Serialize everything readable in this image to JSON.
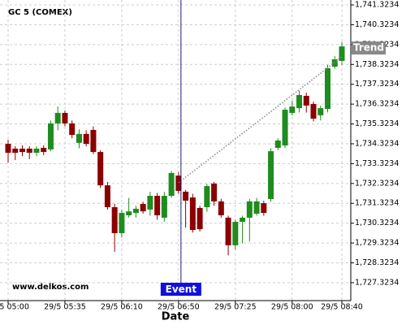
{
  "chart_data": {
    "type": "candlestick",
    "title": "GC 5 (COMEX)",
    "watermark": "www.delkos.com",
    "x_label": "Date",
    "categories": [
      "29/5 05:00",
      null,
      null,
      null,
      null,
      null,
      null,
      null,
      "29/5 05:35",
      null,
      null,
      null,
      null,
      null,
      null,
      null,
      "29/5 06:10",
      null,
      null,
      null,
      null,
      null,
      null,
      null,
      "29/5 06:50",
      null,
      null,
      null,
      null,
      null,
      null,
      null,
      "29/5 07:25",
      null,
      null,
      null,
      null,
      null,
      null,
      null,
      "29/5 08:00",
      null,
      null,
      null,
      null,
      null,
      null,
      "29/5 08:40"
    ],
    "open": [
      1734.32,
      1734.08,
      1734.08,
      1734.08,
      1733.87,
      1734.12,
      1734.04,
      1735.35,
      1735.88,
      1735.35,
      1734.37,
      1734.82,
      1735.02,
      1733.91,
      1732.23,
      1731.13,
      1729.82,
      1730.72,
      1730.84,
      1731.29,
      1731.01,
      1731.7,
      1730.6,
      1731.7,
      1732.72,
      1731.91,
      1731.62,
      1731.09,
      1731.13,
      1732.32,
      1731.42,
      1730.6,
      1729.21,
      1730.39,
      1730.6,
      1730.8,
      1731.33,
      1731.54,
      1734.12,
      1734.24,
      1735.88,
      1736.12,
      1736.74,
      1736.33,
      1735.76,
      1736.08,
      1738.21,
      1738.5
    ],
    "high": [
      1734.52,
      1734.2,
      1734.25,
      1734.2,
      1734.2,
      1734.25,
      1735.5,
      1736.2,
      1736.0,
      1735.5,
      1735.05,
      1735.0,
      1735.2,
      1734.0,
      1732.4,
      1731.3,
      1731.0,
      1731.6,
      1731.2,
      1731.4,
      1731.9,
      1731.85,
      1731.9,
      1732.95,
      1732.9,
      1732.0,
      1731.8,
      1731.2,
      1732.3,
      1732.4,
      1731.55,
      1730.7,
      1730.5,
      1730.7,
      1731.55,
      1731.6,
      1731.45,
      1734.1,
      1734.6,
      1736.15,
      1736.5,
      1737.0,
      1736.9,
      1736.45,
      1736.25,
      1738.3,
      1738.75,
      1739.45
    ],
    "low": [
      1733.37,
      1733.5,
      1733.7,
      1733.55,
      1733.7,
      1733.75,
      1733.95,
      1735.0,
      1735.2,
      1734.6,
      1734.1,
      1734.2,
      1733.8,
      1732.1,
      1731.0,
      1728.88,
      1729.6,
      1730.6,
      1730.6,
      1730.8,
      1730.7,
      1730.5,
      1730.4,
      1731.6,
      1731.8,
      1730.1,
      1729.85,
      1729.9,
      1730.9,
      1731.2,
      1730.6,
      1728.7,
      1729.0,
      1729.3,
      1729.4,
      1730.7,
      1730.7,
      1731.4,
      1734.0,
      1734.1,
      1735.75,
      1735.9,
      1735.9,
      1735.45,
      1735.5,
      1735.9,
      1738.1,
      1738.3
    ],
    "close": [
      1733.87,
      1733.87,
      1733.91,
      1733.87,
      1734.08,
      1733.91,
      1735.35,
      1735.88,
      1735.35,
      1734.77,
      1734.82,
      1734.32,
      1733.91,
      1732.23,
      1731.13,
      1729.82,
      1730.84,
      1730.92,
      1731.05,
      1730.92,
      1731.7,
      1730.72,
      1731.7,
      1732.85,
      1731.95,
      1731.46,
      1729.98,
      1730.02,
      1732.19,
      1731.42,
      1730.72,
      1729.21,
      1730.39,
      1730.6,
      1731.42,
      1731.42,
      1730.84,
      1733.95,
      1734.49,
      1736.04,
      1736.2,
      1736.78,
      1736.25,
      1735.59,
      1736.12,
      1738.13,
      1738.58,
      1739.23
    ],
    "up_color": "#1e8c1e",
    "down_color": "#8b0000",
    "trend": {
      "name": "Trend",
      "color": "#888888",
      "values": [
        null,
        null,
        null,
        null,
        null,
        null,
        null,
        null,
        null,
        null,
        null,
        null,
        null,
        null,
        null,
        null,
        null,
        null,
        null,
        null,
        null,
        null,
        null,
        null,
        1732.36,
        1732.64,
        1732.91,
        1733.19,
        1733.46,
        1733.74,
        1734.01,
        1734.29,
        1734.57,
        1734.84,
        1735.12,
        1735.39,
        1735.67,
        1735.94,
        1736.22,
        1736.5,
        1736.77,
        1737.05,
        1737.32,
        1737.6,
        1737.87,
        1738.15,
        1738.43,
        1738.7
      ]
    },
    "event": {
      "label": "Event",
      "x": "29/5 06:50",
      "color": "#1010e0"
    },
    "ylim": [
      1726.42,
      1741.57
    ],
    "yticks": [
      {
        "value": 1727.3234,
        "label": "1,727.3234"
      },
      {
        "value": 1728.3234,
        "label": "1,728.3234"
      },
      {
        "value": 1729.3234,
        "label": "1,729.3234"
      },
      {
        "value": 1730.3234,
        "label": "1,730.3234"
      },
      {
        "value": 1731.3234,
        "label": "1,731.3234"
      },
      {
        "value": 1732.3234,
        "label": "1,732.3234"
      },
      {
        "value": 1733.3234,
        "label": "1,733.3234"
      },
      {
        "value": 1734.3234,
        "label": "1,734.3234"
      },
      {
        "value": 1735.3234,
        "label": "1,735.3234"
      },
      {
        "value": 1736.3234,
        "label": "1,736.3234"
      },
      {
        "value": 1737.3234,
        "label": "1,737.3234"
      },
      {
        "value": 1738.3234,
        "label": "1,738.3234"
      },
      {
        "value": 1739.3234,
        "label": "1,739.3234"
      },
      {
        "value": 1740.3234,
        "label": "1,740.3234"
      },
      {
        "value": 1741.3234,
        "label": "1,741.3234"
      }
    ],
    "grid": true
  }
}
